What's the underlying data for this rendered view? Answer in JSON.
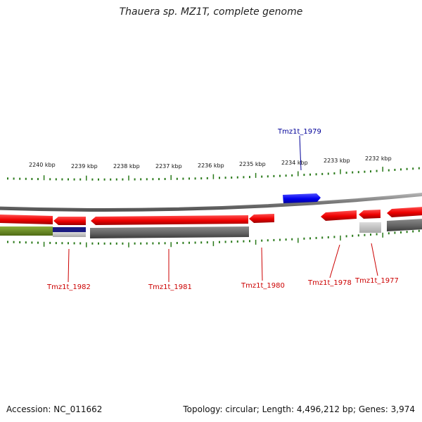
{
  "title": "Thauera sp. MZ1T, complete genome",
  "footer": {
    "accession": "Accession: NC_011662",
    "topology": "Topology: circular; Length: 4,496,212 bp; Genes: 3,974"
  },
  "scale_labels": [
    "2240 kbp",
    "2239 kbp",
    "2238 kbp",
    "2237 kbp",
    "2236 kbp",
    "2235 kbp",
    "2234 kbp",
    "2233 kbp",
    "2232 kbp"
  ],
  "gene_labels": [
    {
      "id": "Tmz1t_1979",
      "strand": "forward"
    },
    {
      "id": "Tmz1t_1982",
      "strand": "reverse"
    },
    {
      "id": "Tmz1t_1981",
      "strand": "reverse"
    },
    {
      "id": "Tmz1t_1980",
      "strand": "reverse"
    },
    {
      "id": "Tmz1t_1978",
      "strand": "reverse"
    },
    {
      "id": "Tmz1t_1977",
      "strand": "reverse"
    }
  ],
  "colors": {
    "forward_gene": "#1a1aff",
    "reverse_gene": "#ff0000",
    "backbone": "#8c8c8c",
    "tick": "#2a7a1a",
    "forward_label": "#000099",
    "reverse_label": "#cc0000",
    "gc_high": "#6b8e23",
    "gc_low": "#1a1a80",
    "gray_track": "#666666"
  }
}
